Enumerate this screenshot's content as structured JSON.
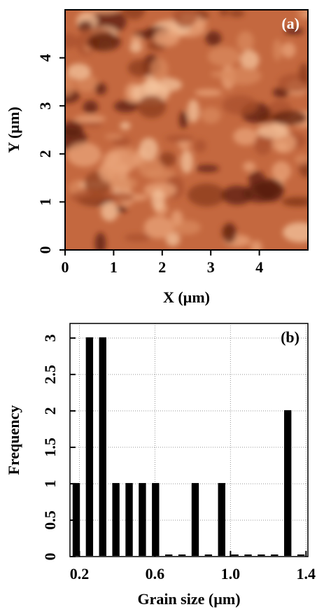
{
  "chart_data": [
    {
      "type": "image",
      "xlabel": "X (µm)",
      "ylabel": "Y (µm)",
      "annotation": "(a)",
      "xlim": [
        0,
        5
      ],
      "ylim": [
        0,
        5
      ],
      "xticks": [
        0,
        1,
        2,
        3,
        4
      ],
      "yticks": [
        0,
        1,
        2,
        3,
        4
      ]
    },
    {
      "type": "histogram",
      "xlabel": "Grain size (µm)",
      "ylabel": "Frequency",
      "annotation": "(b)",
      "bins": [
        0.15,
        0.22,
        0.29,
        0.36,
        0.43,
        0.5,
        0.57,
        0.64,
        0.71,
        0.78,
        0.85,
        0.92,
        0.99,
        1.06,
        1.13,
        1.2,
        1.27,
        1.34,
        1.41
      ],
      "values": [
        1,
        3,
        3,
        1,
        1,
        1,
        1,
        0,
        0,
        1,
        0,
        1,
        0,
        0,
        0,
        0,
        2,
        0
      ],
      "color": "#000000",
      "grid": true,
      "xlim": [
        0.15,
        1.41
      ],
      "ylim": [
        0,
        3.2
      ],
      "xticks": [
        0.2,
        0.6,
        {
          "value": 1,
          "label": "1.0"
        },
        1.4
      ],
      "yticks": [
        0,
        0.5,
        1,
        1.5,
        2,
        2.5,
        3
      ]
    }
  ]
}
